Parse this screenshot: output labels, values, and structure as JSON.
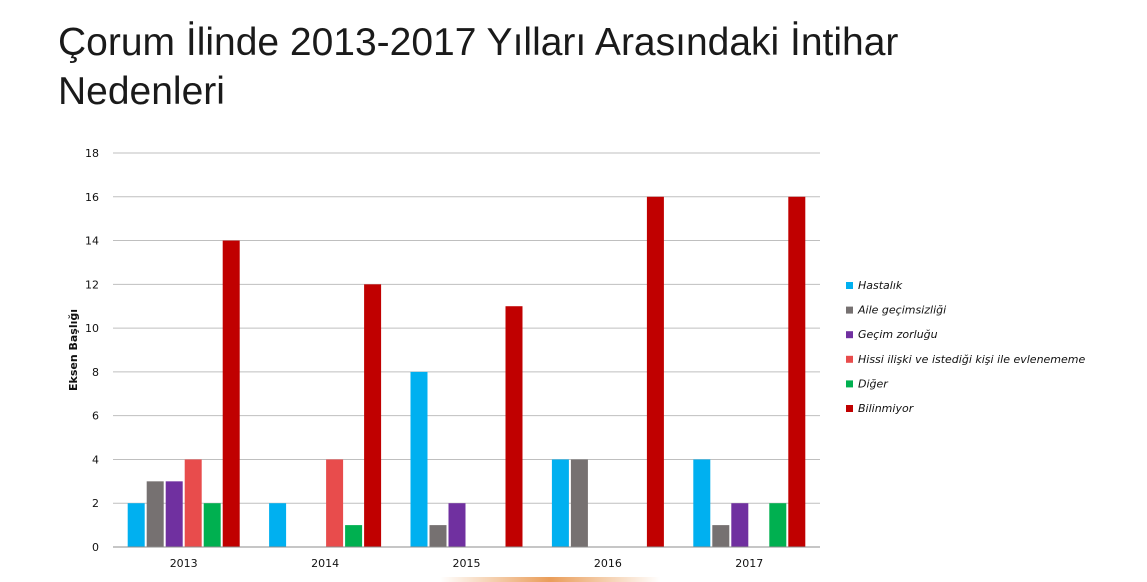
{
  "title": "Çorum İlinde 2013-2017 Yılları Arasındaki İntihar Nedenleri",
  "chart_data": {
    "type": "bar",
    "categories": [
      "2013",
      "2014",
      "2015",
      "2016",
      "2017"
    ],
    "ylabel": "Eksen Başlığı",
    "xlabel": "",
    "ylim": [
      0,
      18
    ],
    "yticks": [
      0,
      2,
      4,
      6,
      8,
      10,
      12,
      14,
      16,
      18
    ],
    "grid": true,
    "legend_position": "right",
    "series": [
      {
        "name": "Hastalık",
        "color": "#00b0f0",
        "values": [
          2,
          2,
          8,
          4,
          4
        ]
      },
      {
        "name": "Aile geçimsizliği",
        "color": "#767171",
        "values": [
          3,
          0,
          1,
          4,
          1
        ]
      },
      {
        "name": "Geçim zorluğu",
        "color": "#7030a0",
        "values": [
          3,
          0,
          2,
          0,
          2
        ]
      },
      {
        "name": "Hissi ilişki ve istediği kişi ile evlenememe",
        "color": "#e84c4c",
        "values": [
          4,
          4,
          0,
          0,
          0
        ]
      },
      {
        "name": "Diğer",
        "color": "#00b050",
        "values": [
          2,
          1,
          0,
          0,
          2
        ]
      },
      {
        "name": "Bilinmiyor",
        "color": "#c00000",
        "values": [
          14,
          12,
          11,
          16,
          16
        ]
      }
    ]
  }
}
